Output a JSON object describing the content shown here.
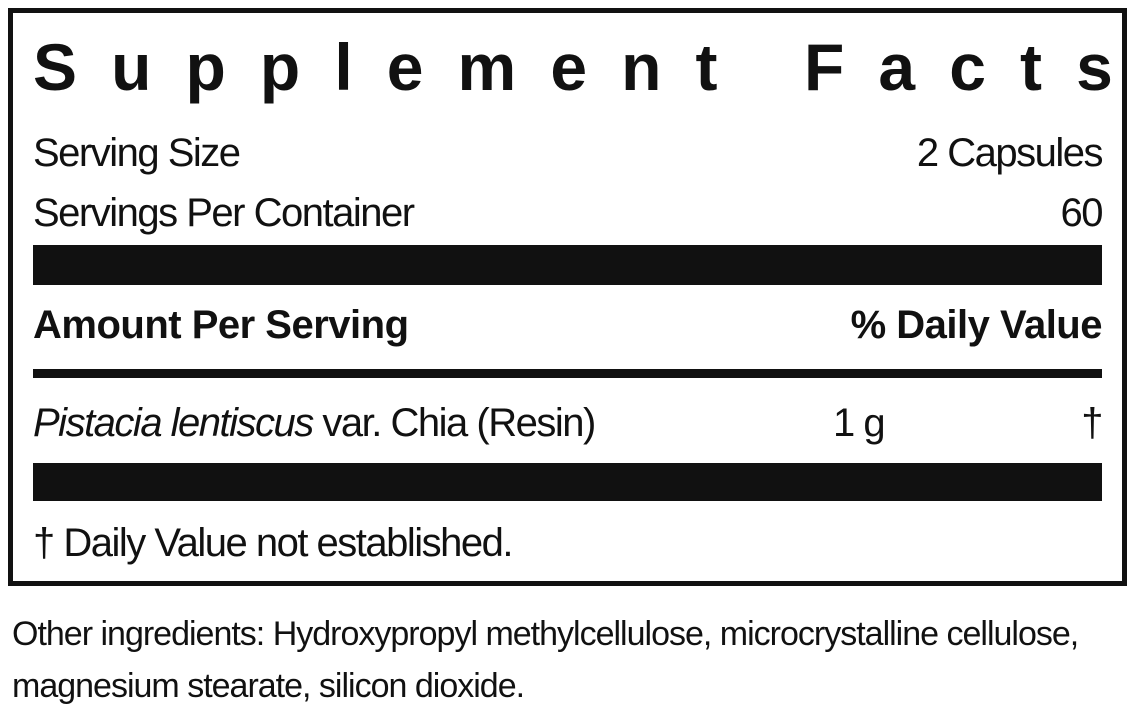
{
  "title": "Supplement Facts",
  "serving_size": {
    "label": "Serving Size",
    "value": "2 Capsules"
  },
  "servings_per_container": {
    "label": "Servings Per Container",
    "value": "60"
  },
  "header": {
    "amount": "Amount Per Serving",
    "daily_value": "% Daily Value"
  },
  "ingredients": [
    {
      "name_italic": "Pistacia lentiscus",
      "name_rest": " var. Chia (Resin)",
      "amount": "1 g",
      "dv": "†"
    }
  ],
  "footnote": "† Daily Value not established.",
  "other_ingredients": "Other ingredients: Hydroxypropyl methylcellulose, microcrystalline cellulose, magnesium stearate, silicon dioxide."
}
